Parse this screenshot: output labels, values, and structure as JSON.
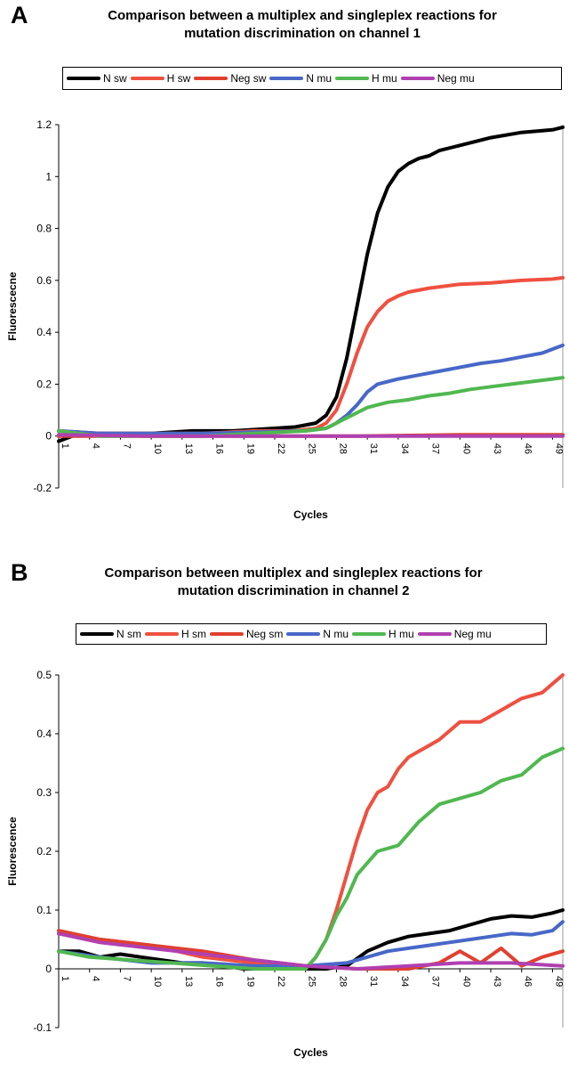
{
  "chart_data": [
    {
      "panel": "A",
      "type": "line",
      "title": "Comparison between a multiplex and singleplex reactions for mutation discrimination on channel 1",
      "title_lines": [
        "Comparison between a multiplex and singleplex reactions for",
        "mutation discrimination on channel 1"
      ],
      "xlabel": "Cycles",
      "ylabel": "Fluorescecne",
      "xlim": [
        1,
        50
      ],
      "ylim": [
        -0.2,
        1.2
      ],
      "y_ticks": [
        "-0.2",
        "0",
        "0.2",
        "0.4",
        "0.6",
        "0.8",
        "1",
        "1.2"
      ],
      "x_tick_labels": [
        "1",
        "4",
        "7",
        "10",
        "13",
        "16",
        "19",
        "22",
        "25",
        "28",
        "31",
        "34",
        "37",
        "40",
        "43",
        "46",
        "49"
      ],
      "grid": false,
      "legend_position": "top",
      "series": [
        {
          "name": "N sw",
          "color": "#000000",
          "x": [
            1,
            3,
            6,
            10,
            14,
            18,
            22,
            24,
            26,
            27,
            28,
            29,
            30,
            31,
            32,
            33,
            34,
            35,
            36,
            37,
            38,
            40,
            43,
            46,
            49,
            50
          ],
          "y": [
            -0.02,
            0.01,
            0.01,
            0.01,
            0.02,
            0.02,
            0.03,
            0.035,
            0.05,
            0.08,
            0.15,
            0.3,
            0.5,
            0.7,
            0.86,
            0.96,
            1.02,
            1.05,
            1.07,
            1.08,
            1.1,
            1.12,
            1.15,
            1.17,
            1.18,
            1.19
          ]
        },
        {
          "name": "H sw",
          "color": "#ef5040",
          "x": [
            1,
            5,
            10,
            15,
            20,
            24,
            26,
            27,
            28,
            29,
            30,
            31,
            32,
            33,
            34,
            35,
            37,
            40,
            43,
            46,
            49,
            50
          ],
          "y": [
            0.02,
            0.01,
            0.01,
            0.01,
            0.02,
            0.02,
            0.03,
            0.05,
            0.1,
            0.2,
            0.32,
            0.42,
            0.48,
            0.52,
            0.54,
            0.555,
            0.57,
            0.585,
            0.59,
            0.6,
            0.605,
            0.61
          ]
        },
        {
          "name": "Neg sw",
          "color": "#e04030",
          "x": [
            1,
            10,
            20,
            30,
            40,
            50
          ],
          "y": [
            0.0,
            0.0,
            0.0,
            0.0,
            0.005,
            0.005
          ]
        },
        {
          "name": "N mu",
          "color": "#4868c8",
          "x": [
            1,
            5,
            10,
            15,
            20,
            25,
            27,
            28,
            29,
            30,
            31,
            32,
            33,
            34,
            36,
            38,
            40,
            42,
            44,
            46,
            48,
            50
          ],
          "y": [
            0.02,
            0.01,
            0.01,
            0.01,
            0.015,
            0.02,
            0.03,
            0.05,
            0.08,
            0.12,
            0.17,
            0.2,
            0.21,
            0.22,
            0.235,
            0.25,
            0.265,
            0.28,
            0.29,
            0.305,
            0.32,
            0.35
          ]
        },
        {
          "name": "H mu",
          "color": "#50b850",
          "x": [
            1,
            5,
            10,
            15,
            20,
            25,
            27,
            28,
            29,
            30,
            31,
            32,
            33,
            35,
            37,
            39,
            41,
            43,
            45,
            47,
            49,
            50
          ],
          "y": [
            0.02,
            0.0,
            0.0,
            0.0,
            0.01,
            0.02,
            0.03,
            0.05,
            0.07,
            0.09,
            0.11,
            0.12,
            0.13,
            0.14,
            0.155,
            0.165,
            0.18,
            0.19,
            0.2,
            0.21,
            0.22,
            0.225
          ]
        },
        {
          "name": "Neg mu",
          "color": "#b040b0",
          "x": [
            1,
            10,
            20,
            30,
            40,
            50
          ],
          "y": [
            0.005,
            0.0,
            0.0,
            0.0,
            0.0,
            0.0
          ]
        }
      ]
    },
    {
      "panel": "B",
      "type": "line",
      "title": "Comparison between multiplex and singleplex reactions for mutation discrimination in channel 2",
      "title_lines": [
        "Comparison between multiplex and singleplex reactions for",
        "mutation discrimination in channel 2"
      ],
      "xlabel": "Cycles",
      "ylabel": "Fluorescence",
      "xlim": [
        1,
        50
      ],
      "ylim": [
        -0.1,
        0.5
      ],
      "y_ticks": [
        "-0.1",
        "0",
        "0.1",
        "0.2",
        "0.3",
        "0.4",
        "0.5"
      ],
      "x_tick_labels": [
        "1",
        "4",
        "7",
        "10",
        "13",
        "16",
        "19",
        "22",
        "25",
        "28",
        "31",
        "34",
        "37",
        "40",
        "43",
        "46",
        "49"
      ],
      "grid": false,
      "legend_position": "top",
      "series": [
        {
          "name": "N sm",
          "color": "#000000",
          "x": [
            1,
            3,
            5,
            7,
            9,
            11,
            13,
            15,
            17,
            19,
            21,
            23,
            25,
            27,
            29,
            31,
            33,
            35,
            37,
            39,
            41,
            43,
            45,
            47,
            49,
            50
          ],
          "y": [
            0.03,
            0.03,
            0.02,
            0.025,
            0.02,
            0.015,
            0.01,
            0.01,
            0.005,
            0.0,
            0.0,
            0.0,
            0.0,
            0.0,
            0.005,
            0.03,
            0.045,
            0.055,
            0.06,
            0.065,
            0.075,
            0.085,
            0.09,
            0.088,
            0.095,
            0.1
          ]
        },
        {
          "name": "H sm",
          "color": "#ef5040",
          "x": [
            1,
            5,
            10,
            15,
            20,
            25,
            26,
            27,
            28,
            29,
            30,
            31,
            32,
            33,
            34,
            35,
            36,
            37,
            38,
            40,
            42,
            44,
            46,
            48,
            50
          ],
          "y": [
            0.06,
            0.05,
            0.04,
            0.02,
            0.01,
            0.0,
            0.02,
            0.05,
            0.1,
            0.16,
            0.22,
            0.27,
            0.3,
            0.31,
            0.34,
            0.36,
            0.37,
            0.38,
            0.39,
            0.42,
            0.42,
            0.44,
            0.46,
            0.47,
            0.5
          ]
        },
        {
          "name": "Neg sm",
          "color": "#e04030",
          "x": [
            1,
            5,
            10,
            15,
            20,
            25,
            30,
            35,
            38,
            40,
            42,
            44,
            46,
            48,
            50
          ],
          "y": [
            0.065,
            0.05,
            0.04,
            0.03,
            0.015,
            0.005,
            0.0,
            0.0,
            0.01,
            0.03,
            0.01,
            0.035,
            0.005,
            0.02,
            0.03
          ]
        },
        {
          "name": "N mu",
          "color": "#4868c8",
          "x": [
            1,
            5,
            10,
            15,
            20,
            25,
            29,
            31,
            33,
            35,
            37,
            39,
            41,
            43,
            45,
            47,
            49,
            50
          ],
          "y": [
            0.03,
            0.02,
            0.01,
            0.01,
            0.005,
            0.005,
            0.01,
            0.02,
            0.03,
            0.035,
            0.04,
            0.045,
            0.05,
            0.055,
            0.06,
            0.058,
            0.065,
            0.08
          ]
        },
        {
          "name": "H mu",
          "color": "#50b850",
          "x": [
            1,
            4,
            8,
            12,
            16,
            20,
            25,
            26,
            27,
            28,
            29,
            30,
            31,
            32,
            34,
            36,
            38,
            40,
            42,
            44,
            46,
            48,
            50
          ],
          "y": [
            0.03,
            0.02,
            0.015,
            0.01,
            0.005,
            0.0,
            0.0,
            0.02,
            0.05,
            0.09,
            0.12,
            0.16,
            0.18,
            0.2,
            0.21,
            0.25,
            0.28,
            0.29,
            0.3,
            0.32,
            0.33,
            0.36,
            0.375
          ]
        },
        {
          "name": "Neg mu",
          "color": "#b040b0",
          "x": [
            1,
            5,
            10,
            15,
            20,
            25,
            30,
            35,
            40,
            45,
            50
          ],
          "y": [
            0.06,
            0.045,
            0.035,
            0.025,
            0.015,
            0.005,
            0.0,
            0.005,
            0.01,
            0.01,
            0.005
          ]
        }
      ]
    }
  ]
}
